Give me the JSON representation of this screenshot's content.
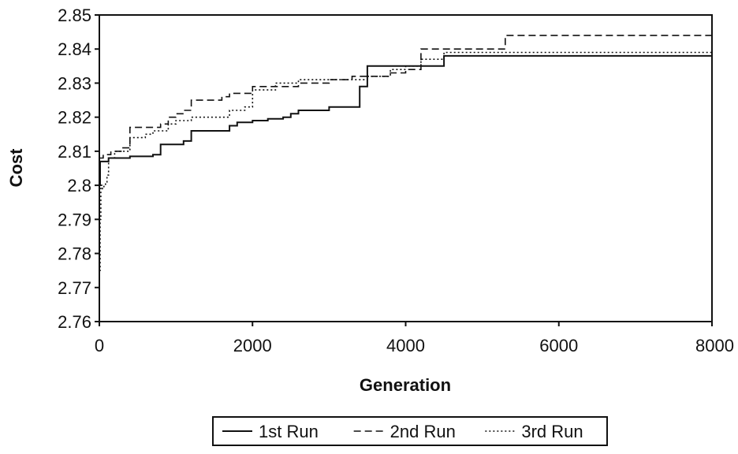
{
  "chart_data": {
    "type": "line",
    "title": "",
    "xlabel": "Generation",
    "ylabel": "Cost",
    "xlim": [
      0,
      8000
    ],
    "ylim": [
      2.76,
      2.85
    ],
    "xticks": [
      0,
      2000,
      4000,
      6000,
      8000
    ],
    "xtick_labels": [
      "0",
      "2000",
      "4000",
      "6000",
      "8000"
    ],
    "yticks": [
      2.76,
      2.77,
      2.78,
      2.79,
      2.8,
      2.81,
      2.82,
      2.83,
      2.84,
      2.85
    ],
    "ytick_labels": [
      "2.76",
      "2.77",
      "2.78",
      "2.79",
      "2.8",
      "2.81",
      "2.82",
      "2.83",
      "2.84",
      "2.85"
    ],
    "grid": false,
    "legend_position": "bottom",
    "series": [
      {
        "name": "1st Run",
        "style": "solid",
        "color": "#111111",
        "x": [
          0,
          10,
          20,
          120,
          400,
          700,
          800,
          1000,
          1100,
          1200,
          1600,
          1700,
          1800,
          1900,
          2000,
          2200,
          2400,
          2500,
          2600,
          2800,
          3000,
          3200,
          3300,
          3350,
          3400,
          3500,
          4200,
          4500,
          8000
        ],
        "y": [
          2.8,
          2.807,
          2.807,
          2.808,
          2.8085,
          2.809,
          2.812,
          2.812,
          2.813,
          2.816,
          2.816,
          2.8175,
          2.8185,
          2.8185,
          2.819,
          2.8195,
          2.82,
          2.821,
          2.822,
          2.822,
          2.823,
          2.823,
          2.823,
          2.823,
          2.829,
          2.835,
          2.835,
          2.838,
          2.838
        ]
      },
      {
        "name": "2nd Run",
        "style": "dashed",
        "color": "#111111",
        "x": [
          0,
          30,
          50,
          150,
          300,
          400,
          500,
          700,
          800,
          900,
          1000,
          1100,
          1200,
          1400,
          1600,
          1700,
          1800,
          2000,
          2300,
          2600,
          2800,
          3000,
          3300,
          3500,
          3800,
          4000,
          4100,
          4200,
          5200,
          5300,
          8000
        ],
        "y": [
          2.808,
          2.808,
          2.809,
          2.81,
          2.811,
          2.817,
          2.817,
          2.817,
          2.818,
          2.82,
          2.821,
          2.822,
          2.825,
          2.825,
          2.826,
          2.827,
          2.827,
          2.829,
          2.829,
          2.83,
          2.83,
          2.831,
          2.832,
          2.832,
          2.833,
          2.834,
          2.834,
          2.84,
          2.84,
          2.844,
          2.844
        ]
      },
      {
        "name": "3rd Run",
        "style": "dotted",
        "color": "#111111",
        "x": [
          0,
          10,
          20,
          40,
          60,
          80,
          100,
          120,
          200,
          400,
          600,
          700,
          900,
          1000,
          1200,
          1600,
          1700,
          1800,
          1900,
          2000,
          2300,
          2600,
          2800,
          3000,
          3300,
          3500,
          3800,
          4000,
          4200,
          4500,
          8000
        ],
        "y": [
          2.775,
          2.79,
          2.8,
          2.799,
          2.8,
          2.801,
          2.803,
          2.808,
          2.81,
          2.814,
          2.815,
          2.816,
          2.818,
          2.819,
          2.82,
          2.82,
          2.822,
          2.822,
          2.823,
          2.828,
          2.83,
          2.831,
          2.831,
          2.831,
          2.831,
          2.832,
          2.834,
          2.835,
          2.837,
          2.839,
          2.839
        ]
      }
    ]
  }
}
